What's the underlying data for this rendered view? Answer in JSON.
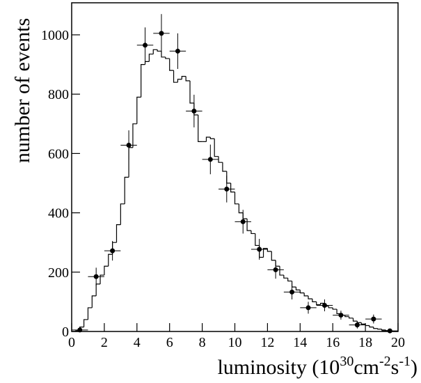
{
  "chart_data": {
    "type": "histogram",
    "xlabel": [
      "luminosity (10",
      "30",
      "cm",
      "-2",
      "s",
      "-1",
      ")"
    ],
    "ylabel": "number of events",
    "bins": [
      0,
      0.25,
      0.5,
      0.75,
      1,
      1.25,
      1.5,
      1.75,
      2,
      2.25,
      2.5,
      2.75,
      3,
      3.25,
      3.5,
      3.75,
      4,
      4.25,
      4.5,
      4.75,
      5,
      5.25,
      5.5,
      5.75,
      6,
      6.25,
      6.5,
      6.75,
      7,
      7.25,
      7.5,
      7.75,
      8,
      8.25,
      8.5,
      8.75,
      9,
      9.25,
      9.5,
      9.75,
      10,
      10.25,
      10.5,
      10.75,
      11,
      11.25,
      11.5,
      11.75,
      12,
      12.25,
      12.5,
      12.75,
      13,
      13.25,
      13.5,
      13.75,
      14,
      14.25,
      14.5,
      14.75,
      15,
      15.25,
      15.5,
      15.75,
      16,
      16.25,
      16.5,
      16.75,
      17,
      17.25,
      17.5,
      17.75,
      18,
      18.25,
      18.5,
      18.75,
      19,
      19.25,
      19.5,
      19.75,
      20
    ],
    "values": [
      0,
      2,
      15,
      40,
      80,
      120,
      160,
      190,
      220,
      260,
      300,
      360,
      430,
      520,
      620,
      700,
      790,
      900,
      910,
      935,
      950,
      945,
      925,
      920,
      880,
      840,
      850,
      860,
      845,
      770,
      730,
      640,
      640,
      655,
      650,
      590,
      570,
      540,
      500,
      470,
      430,
      400,
      380,
      340,
      330,
      290,
      250,
      280,
      270,
      240,
      220,
      190,
      180,
      170,
      150,
      140,
      130,
      120,
      110,
      100,
      90,
      95,
      85,
      80,
      75,
      60,
      55,
      50,
      45,
      35,
      30,
      25,
      20,
      15,
      10,
      8,
      5,
      3,
      0,
      0
    ],
    "color": "#000000",
    "overlay": {
      "type": "errorbar",
      "x": [
        0.5,
        1.5,
        2.5,
        3.5,
        4.5,
        5.5,
        6.5,
        7.5,
        8.5,
        9.5,
        10.5,
        11.5,
        12.5,
        13.5,
        14.5,
        15.5,
        16.5,
        17.5,
        18.5,
        19.5
      ],
      "values": [
        5,
        185,
        272,
        628,
        965,
        1005,
        945,
        743,
        580,
        480,
        370,
        277,
        208,
        133,
        80,
        88,
        55,
        22,
        42,
        2
      ],
      "yerr": [
        5,
        30,
        33,
        50,
        60,
        65,
        60,
        55,
        50,
        45,
        40,
        35,
        30,
        25,
        20,
        20,
        15,
        12,
        15,
        3
      ],
      "xerr": 0.5
    },
    "xlim": [
      0,
      20
    ],
    "xticks": [
      0,
      2,
      4,
      6,
      8,
      10,
      12,
      14,
      16,
      18,
      20
    ],
    "ylim": [
      0,
      1108
    ],
    "yticks": [
      0,
      200,
      400,
      600,
      800,
      1000
    ]
  }
}
